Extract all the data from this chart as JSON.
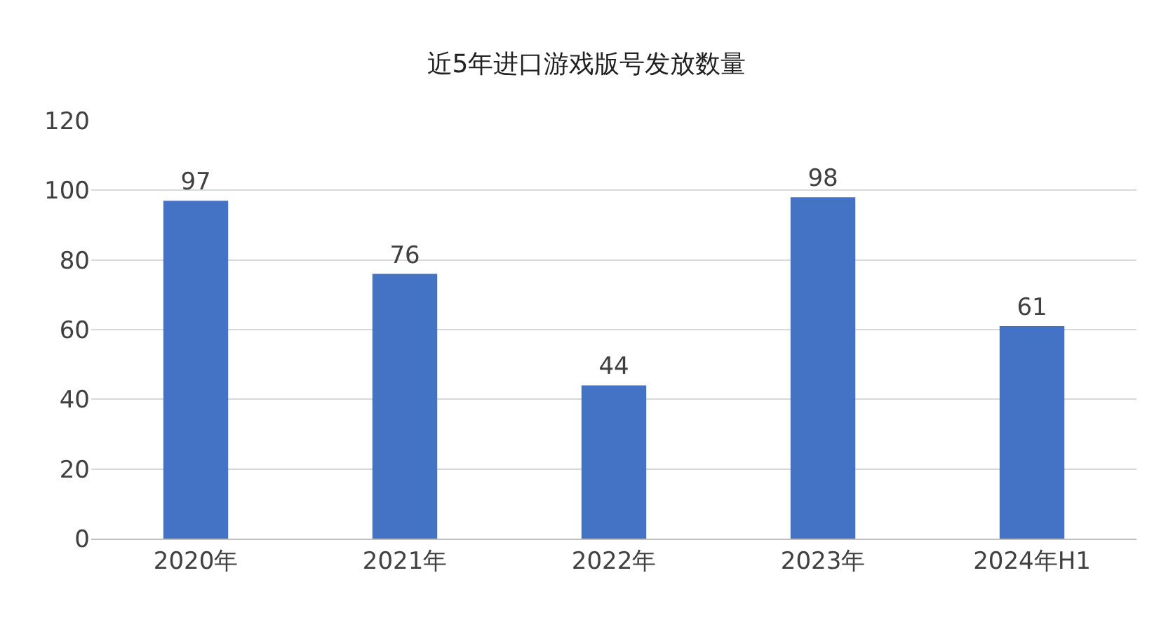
{
  "chart_data": {
    "type": "bar",
    "title": "近5年进口游戏版号发放数量",
    "categories": [
      "2020年",
      "2021年",
      "2022年",
      "2023年",
      "2024年H1"
    ],
    "values": [
      97,
      76,
      44,
      98,
      61
    ],
    "color": "#4472c4",
    "ylim": [
      0,
      120
    ],
    "yticks": [
      0,
      20,
      40,
      60,
      80,
      100,
      120
    ],
    "grid": "y",
    "data_labels": true
  }
}
